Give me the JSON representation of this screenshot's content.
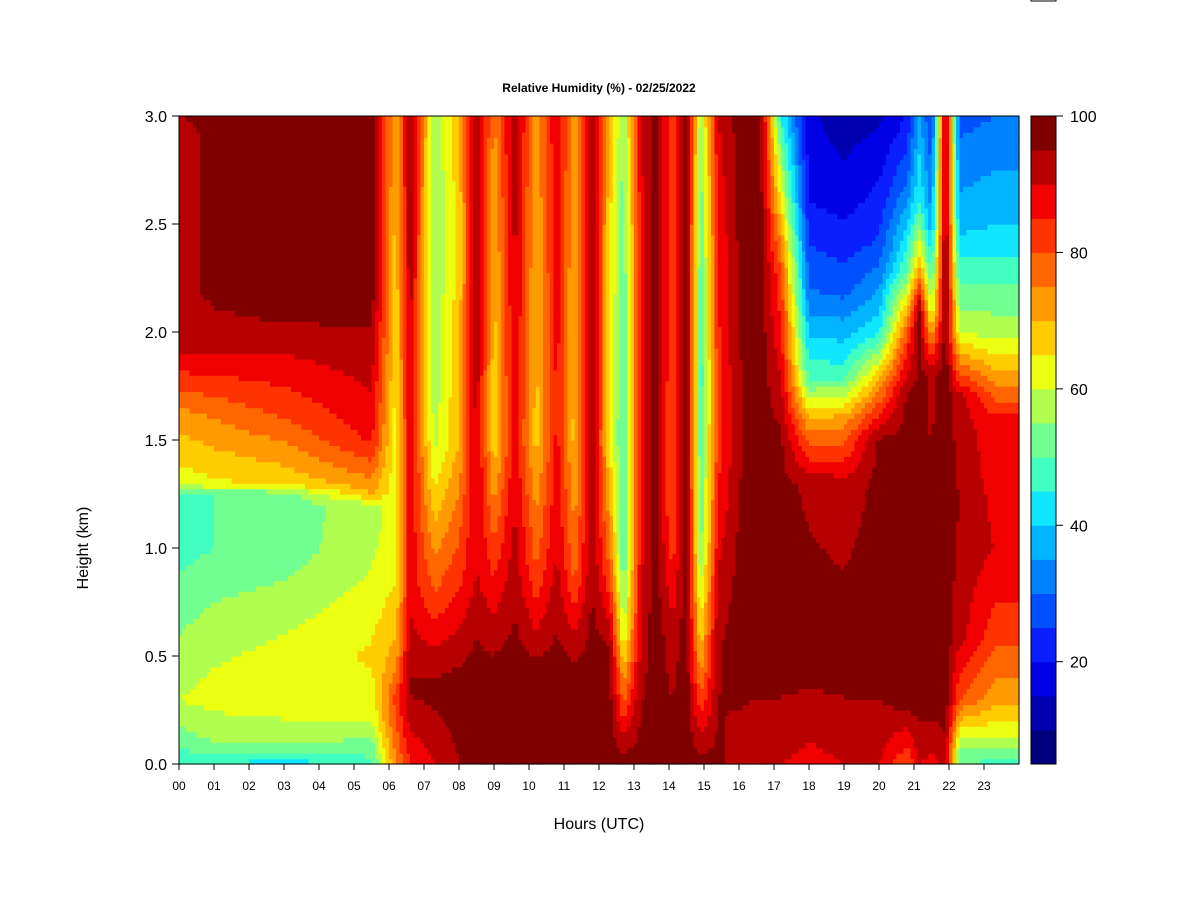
{
  "chart_data": {
    "type": "heatmap",
    "title": "Relative Humidity (%) - 02/25/2022",
    "xlabel": "Hours (UTC)",
    "ylabel": "Height (km)",
    "xlim": [
      0,
      24
    ],
    "ylim": [
      0,
      3
    ],
    "x_ticks": [
      "00",
      "01",
      "02",
      "03",
      "04",
      "05",
      "06",
      "07",
      "08",
      "09",
      "10",
      "11",
      "12",
      "13",
      "14",
      "15",
      "16",
      "17",
      "18",
      "19",
      "20",
      "21",
      "22",
      "23"
    ],
    "y_ticks": [
      "0.0",
      "0.5",
      "1.0",
      "1.5",
      "2.0",
      "2.5",
      "3.0"
    ],
    "colorbar": {
      "range": [
        5,
        100
      ],
      "ticks": [
        "20",
        "40",
        "60",
        "80",
        "100"
      ],
      "levels": [
        {
          "lo": 5,
          "hi": 10,
          "color": "#00007f"
        },
        {
          "lo": 10,
          "hi": 15,
          "color": "#0000b0"
        },
        {
          "lo": 15,
          "hi": 20,
          "color": "#0000e6"
        },
        {
          "lo": 20,
          "hi": 25,
          "color": "#0a1eff"
        },
        {
          "lo": 25,
          "hi": 30,
          "color": "#0050ff"
        },
        {
          "lo": 30,
          "hi": 35,
          "color": "#0082ff"
        },
        {
          "lo": 35,
          "hi": 40,
          "color": "#00b4ff"
        },
        {
          "lo": 40,
          "hi": 45,
          "color": "#10e6ff"
        },
        {
          "lo": 45,
          "hi": 50,
          "color": "#40ffc0"
        },
        {
          "lo": 50,
          "hi": 55,
          "color": "#70ff90"
        },
        {
          "lo": 55,
          "hi": 60,
          "color": "#b0ff50"
        },
        {
          "lo": 60,
          "hi": 65,
          "color": "#ecff10"
        },
        {
          "lo": 65,
          "hi": 70,
          "color": "#ffcc00"
        },
        {
          "lo": 70,
          "hi": 75,
          "color": "#ff9a00"
        },
        {
          "lo": 75,
          "hi": 80,
          "color": "#ff6600"
        },
        {
          "lo": 80,
          "hi": 85,
          "color": "#ff3300"
        },
        {
          "lo": 85,
          "hi": 90,
          "color": "#f00000"
        },
        {
          "lo": 90,
          "hi": 95,
          "color": "#b80000"
        },
        {
          "lo": 95,
          "hi": 100,
          "color": "#800000"
        }
      ]
    },
    "profiles": [
      {
        "t": 0.0,
        "rh": [
          [
            0,
            45
          ],
          [
            0.1,
            52
          ],
          [
            0.3,
            60
          ],
          [
            0.6,
            55
          ],
          [
            1.0,
            48
          ],
          [
            1.25,
            48
          ],
          [
            1.3,
            62
          ],
          [
            1.6,
            72
          ],
          [
            1.9,
            90
          ],
          [
            2.2,
            92
          ],
          [
            2.9,
            92
          ],
          [
            3.0,
            95
          ]
        ]
      },
      {
        "t": 1.0,
        "rh": [
          [
            0,
            45
          ],
          [
            0.1,
            55
          ],
          [
            0.3,
            62
          ],
          [
            0.6,
            58
          ],
          [
            1.0,
            50
          ],
          [
            1.25,
            50
          ],
          [
            1.3,
            64
          ],
          [
            1.6,
            75
          ],
          [
            1.9,
            90
          ],
          [
            2.2,
            97
          ],
          [
            3.0,
            97
          ]
        ]
      },
      {
        "t": 3.0,
        "rh": [
          [
            0,
            42
          ],
          [
            0.1,
            55
          ],
          [
            0.3,
            64
          ],
          [
            0.6,
            60
          ],
          [
            1.0,
            52
          ],
          [
            1.25,
            52
          ],
          [
            1.3,
            66
          ],
          [
            1.6,
            80
          ],
          [
            1.9,
            90
          ],
          [
            2.1,
            97
          ],
          [
            3.0,
            98
          ]
        ]
      },
      {
        "t": 5.5,
        "rh": [
          [
            0,
            48
          ],
          [
            0.2,
            60
          ],
          [
            0.5,
            66
          ],
          [
            0.9,
            60
          ],
          [
            1.2,
            58
          ],
          [
            1.25,
            70
          ],
          [
            1.5,
            86
          ],
          [
            1.9,
            93
          ],
          [
            2.2,
            98
          ],
          [
            3.0,
            98
          ]
        ]
      },
      {
        "t": 6.2,
        "rh": [
          [
            0,
            75
          ],
          [
            0.3,
            82
          ],
          [
            0.5,
            72
          ],
          [
            1.0,
            62
          ],
          [
            1.5,
            62
          ],
          [
            2.0,
            66
          ],
          [
            3.0,
            70
          ]
        ]
      },
      {
        "t": 6.6,
        "rh": [
          [
            0,
            85
          ],
          [
            0.35,
            96
          ],
          [
            0.8,
            88
          ],
          [
            1.5,
            90
          ],
          [
            2.0,
            92
          ],
          [
            3.0,
            96
          ]
        ]
      },
      {
        "t": 7.3,
        "rh": [
          [
            0,
            90
          ],
          [
            0.35,
            97
          ],
          [
            0.8,
            80
          ],
          [
            1.5,
            58
          ],
          [
            2.5,
            55
          ],
          [
            3.0,
            56
          ]
        ]
      },
      {
        "t": 8.0,
        "rh": [
          [
            0,
            95
          ],
          [
            0.35,
            98
          ],
          [
            0.8,
            85
          ],
          [
            1.5,
            70
          ],
          [
            2.5,
            66
          ],
          [
            3.0,
            70
          ]
        ]
      },
      {
        "t": 8.5,
        "rh": [
          [
            0,
            98
          ],
          [
            0.4,
            98
          ],
          [
            0.9,
            90
          ],
          [
            1.5,
            92
          ],
          [
            2.5,
            94
          ],
          [
            3.0,
            96
          ]
        ]
      },
      {
        "t": 9.0,
        "rh": [
          [
            0,
            98
          ],
          [
            0.4,
            98
          ],
          [
            0.9,
            84
          ],
          [
            1.5,
            66
          ],
          [
            2.5,
            70
          ],
          [
            3.0,
            74
          ]
        ]
      },
      {
        "t": 9.6,
        "rh": [
          [
            0,
            98
          ],
          [
            0.4,
            98
          ],
          [
            1.0,
            92
          ],
          [
            1.5,
            88
          ],
          [
            2.5,
            92
          ],
          [
            3.0,
            95
          ]
        ]
      },
      {
        "t": 10.2,
        "rh": [
          [
            0,
            98
          ],
          [
            0.4,
            98
          ],
          [
            0.9,
            80
          ],
          [
            1.5,
            68
          ],
          [
            2.5,
            70
          ],
          [
            3.0,
            72
          ]
        ]
      },
      {
        "t": 10.8,
        "rh": [
          [
            0,
            98
          ],
          [
            0.4,
            98
          ],
          [
            1.0,
            90
          ],
          [
            1.6,
            86
          ],
          [
            2.5,
            88
          ],
          [
            3.0,
            90
          ]
        ]
      },
      {
        "t": 11.3,
        "rh": [
          [
            0,
            98
          ],
          [
            0.4,
            98
          ],
          [
            0.9,
            78
          ],
          [
            1.5,
            68
          ],
          [
            2.5,
            70
          ],
          [
            3.0,
            72
          ]
        ]
      },
      {
        "t": 11.8,
        "rh": [
          [
            0,
            98
          ],
          [
            0.4,
            98
          ],
          [
            1.0,
            94
          ],
          [
            1.6,
            96
          ],
          [
            2.5,
            96
          ],
          [
            3.0,
            97
          ]
        ]
      },
      {
        "t": 12.3,
        "rh": [
          [
            0,
            98
          ],
          [
            0.5,
            97
          ],
          [
            0.9,
            80
          ],
          [
            1.5,
            64
          ],
          [
            2.5,
            66
          ],
          [
            3.0,
            70
          ]
        ]
      },
      {
        "t": 12.7,
        "rh": [
          [
            0,
            98
          ],
          [
            0.6,
            60
          ],
          [
            1.0,
            48
          ],
          [
            1.8,
            50
          ],
          [
            2.5,
            52
          ],
          [
            3.0,
            55
          ]
        ]
      },
      {
        "t": 13.2,
        "rh": [
          [
            0,
            98
          ],
          [
            0.7,
            90
          ],
          [
            1.5,
            86
          ],
          [
            2.5,
            88
          ],
          [
            3.0,
            90
          ]
        ]
      },
      {
        "t": 13.6,
        "rh": [
          [
            0,
            98
          ],
          [
            0.5,
            98
          ],
          [
            1.5,
            98
          ],
          [
            3.0,
            98
          ]
        ]
      },
      {
        "t": 14.1,
        "rh": [
          [
            0,
            98
          ],
          [
            0.6,
            92
          ],
          [
            1.2,
            78
          ],
          [
            2.0,
            80
          ],
          [
            3.0,
            82
          ]
        ]
      },
      {
        "t": 14.5,
        "rh": [
          [
            0,
            98
          ],
          [
            0.5,
            98
          ],
          [
            1.5,
            98
          ],
          [
            3.0,
            98
          ]
        ]
      },
      {
        "t": 14.9,
        "rh": [
          [
            0,
            98
          ],
          [
            0.5,
            70
          ],
          [
            1.0,
            52
          ],
          [
            1.8,
            46
          ],
          [
            2.5,
            50
          ],
          [
            3.0,
            55
          ]
        ]
      },
      {
        "t": 15.4,
        "rh": [
          [
            0,
            96
          ],
          [
            0.6,
            94
          ],
          [
            1.5,
            82
          ],
          [
            2.5,
            86
          ],
          [
            3.0,
            90
          ]
        ]
      },
      {
        "t": 16.0,
        "rh": [
          [
            0,
            92
          ],
          [
            0.5,
            98
          ],
          [
            1.5,
            94
          ],
          [
            2.5,
            96
          ],
          [
            3.0,
            97
          ]
        ]
      },
      {
        "t": 16.6,
        "rh": [
          [
            0,
            90
          ],
          [
            0.5,
            98
          ],
          [
            1.5,
            98
          ],
          [
            2.5,
            98
          ],
          [
            3.0,
            98
          ]
        ]
      },
      {
        "t": 17.2,
        "rh": [
          [
            0,
            90
          ],
          [
            0.5,
            98
          ],
          [
            1.5,
            96
          ],
          [
            2.3,
            80
          ],
          [
            2.8,
            55
          ],
          [
            3.0,
            45
          ]
        ]
      },
      {
        "t": 18.0,
        "rh": [
          [
            0,
            88
          ],
          [
            0.5,
            98
          ],
          [
            1.3,
            94
          ],
          [
            1.6,
            70
          ],
          [
            1.8,
            48
          ],
          [
            2.2,
            30
          ],
          [
            2.6,
            20
          ],
          [
            3.0,
            16
          ]
        ]
      },
      {
        "t": 19.0,
        "rh": [
          [
            0,
            90
          ],
          [
            0.5,
            98
          ],
          [
            1.3,
            92
          ],
          [
            1.6,
            72
          ],
          [
            1.8,
            48
          ],
          [
            2.2,
            28
          ],
          [
            2.6,
            18
          ],
          [
            3.0,
            12
          ]
        ]
      },
      {
        "t": 20.0,
        "rh": [
          [
            0,
            90
          ],
          [
            0.5,
            98
          ],
          [
            1.5,
            96
          ],
          [
            1.8,
            68
          ],
          [
            2.0,
            44
          ],
          [
            2.4,
            26
          ],
          [
            3.0,
            14
          ]
        ]
      },
      {
        "t": 20.8,
        "rh": [
          [
            0,
            80
          ],
          [
            0.3,
            98
          ],
          [
            1.7,
            96
          ],
          [
            2.0,
            80
          ],
          [
            2.3,
            50
          ],
          [
            2.7,
            30
          ],
          [
            3.0,
            20
          ]
        ]
      },
      {
        "t": 21.15,
        "rh": [
          [
            0,
            90
          ],
          [
            0.3,
            98
          ],
          [
            2.1,
            96
          ],
          [
            2.3,
            70
          ],
          [
            2.6,
            45
          ],
          [
            3.0,
            36
          ]
        ]
      },
      {
        "t": 21.5,
        "rh": [
          [
            0,
            88
          ],
          [
            0.3,
            98
          ],
          [
            1.8,
            94
          ],
          [
            2.1,
            60
          ],
          [
            2.5,
            36
          ],
          [
            3.0,
            24
          ]
        ]
      },
      {
        "t": 21.9,
        "rh": [
          [
            0,
            92
          ],
          [
            0.3,
            98
          ],
          [
            1.5,
            98
          ],
          [
            2.5,
            97
          ],
          [
            3.0,
            96
          ]
        ]
      },
      {
        "t": 22.3,
        "rh": [
          [
            0,
            50
          ],
          [
            0.1,
            58
          ],
          [
            0.3,
            80
          ],
          [
            0.6,
            92
          ],
          [
            1.2,
            95
          ],
          [
            1.7,
            92
          ],
          [
            2.0,
            60
          ],
          [
            2.5,
            38
          ],
          [
            3.0,
            28
          ]
        ]
      },
      {
        "t": 23.3,
        "rh": [
          [
            0,
            48
          ],
          [
            0.1,
            58
          ],
          [
            0.3,
            72
          ],
          [
            0.6,
            82
          ],
          [
            1.0,
            90
          ],
          [
            1.6,
            86
          ],
          [
            2.0,
            58
          ],
          [
            2.5,
            40
          ],
          [
            3.0,
            30
          ]
        ]
      },
      {
        "t": 24.0,
        "rh": [
          [
            0,
            48
          ],
          [
            0.1,
            58
          ],
          [
            0.3,
            72
          ],
          [
            0.6,
            82
          ],
          [
            1.0,
            90
          ],
          [
            1.6,
            86
          ],
          [
            2.0,
            58
          ],
          [
            2.5,
            40
          ],
          [
            3.0,
            30
          ]
        ]
      }
    ]
  }
}
